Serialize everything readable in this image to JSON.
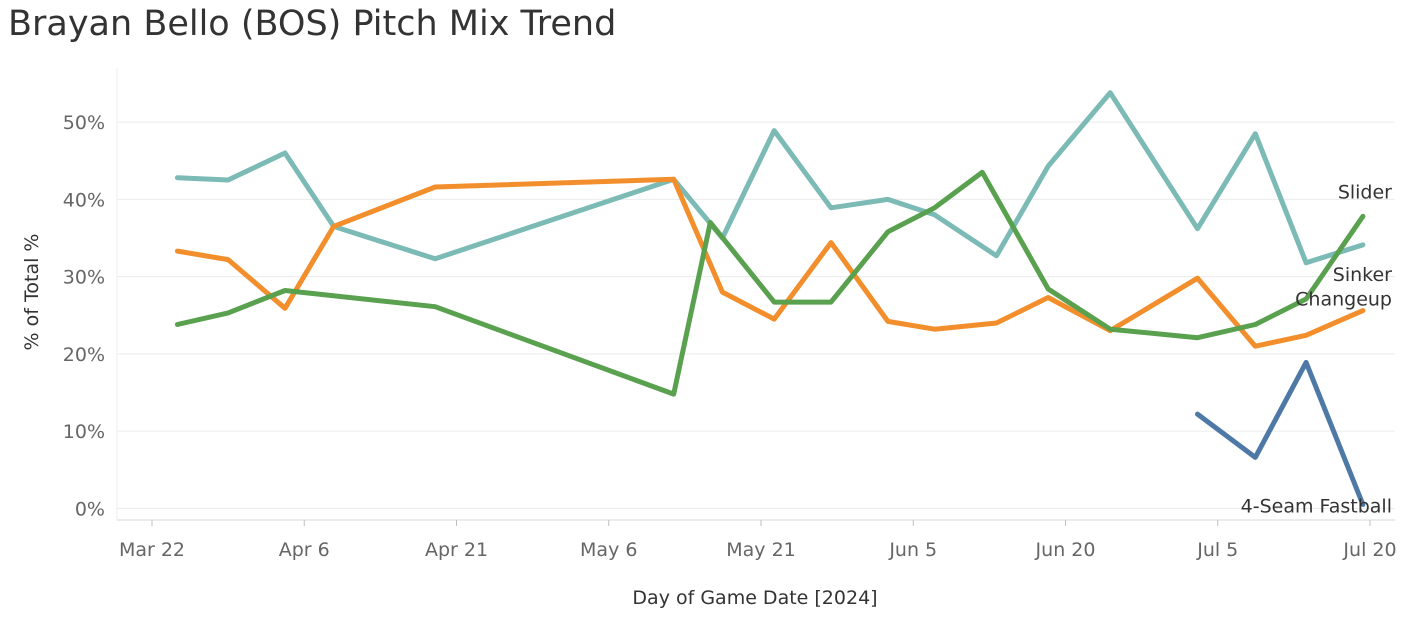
{
  "chart_data": {
    "type": "line",
    "title": "Brayan Bello (BOS) Pitch Mix Trend",
    "xlabel": "Day of Game Date [2024]",
    "ylabel": "% of Total %",
    "ylim": [
      -1.5,
      57
    ],
    "grid": true,
    "x_tick_labels": [
      "Mar 22",
      "Apr 6",
      "Apr 21",
      "May 6",
      "May 21",
      "Jun 5",
      "Jun 20",
      "Jul 5",
      "Jul 20"
    ],
    "x_tick_days": [
      0,
      15,
      30,
      45,
      60,
      75,
      90,
      105,
      120
    ],
    "y_ticks": [
      0,
      10,
      20,
      30,
      40,
      50
    ],
    "y_tick_labels": [
      "0%",
      "10%",
      "20%",
      "30%",
      "40%",
      "50%"
    ],
    "series": [
      {
        "name": "Sinker",
        "color": "#7bbab5",
        "points": [
          {
            "day": 2.5,
            "value": 42.8
          },
          {
            "day": 7.5,
            "value": 42.5
          },
          {
            "day": 13.1,
            "value": 46.0
          },
          {
            "day": 17.9,
            "value": 36.5
          },
          {
            "day": 27.9,
            "value": 32.3
          },
          {
            "day": 51.4,
            "value": 42.6
          },
          {
            "day": 56.2,
            "value": 35.0
          },
          {
            "day": 61.3,
            "value": 48.9
          },
          {
            "day": 66.9,
            "value": 38.9
          },
          {
            "day": 72.5,
            "value": 40.0
          },
          {
            "day": 77.1,
            "value": 38.0
          },
          {
            "day": 83.2,
            "value": 32.7
          },
          {
            "day": 88.3,
            "value": 44.3
          },
          {
            "day": 94.4,
            "value": 53.8
          },
          {
            "day": 103.0,
            "value": 36.2
          },
          {
            "day": 108.7,
            "value": 48.5
          },
          {
            "day": 113.7,
            "value": 31.8
          },
          {
            "day": 119.3,
            "value": 34.1
          }
        ]
      },
      {
        "name": "Changeup",
        "color": "#f28e2b",
        "points": [
          {
            "day": 2.5,
            "value": 33.3
          },
          {
            "day": 7.5,
            "value": 32.2
          },
          {
            "day": 13.1,
            "value": 25.9
          },
          {
            "day": 17.9,
            "value": 36.5
          },
          {
            "day": 27.9,
            "value": 41.6
          },
          {
            "day": 51.4,
            "value": 42.6
          },
          {
            "day": 56.2,
            "value": 28.0
          },
          {
            "day": 61.3,
            "value": 24.5
          },
          {
            "day": 66.9,
            "value": 34.4
          },
          {
            "day": 72.5,
            "value": 24.2
          },
          {
            "day": 77.1,
            "value": 23.2
          },
          {
            "day": 83.2,
            "value": 24.0
          },
          {
            "day": 88.3,
            "value": 27.3
          },
          {
            "day": 94.4,
            "value": 23.0
          },
          {
            "day": 103.0,
            "value": 29.8
          },
          {
            "day": 108.7,
            "value": 21.0
          },
          {
            "day": 113.7,
            "value": 22.4
          },
          {
            "day": 119.3,
            "value": 25.6
          }
        ]
      },
      {
        "name": "Slider",
        "color": "#59a14f",
        "points": [
          {
            "day": 2.5,
            "value": 23.8
          },
          {
            "day": 7.5,
            "value": 25.3
          },
          {
            "day": 13.1,
            "value": 28.2
          },
          {
            "day": 27.9,
            "value": 26.1
          },
          {
            "day": 51.4,
            "value": 14.8
          },
          {
            "day": 55.0,
            "value": 37.0
          },
          {
            "day": 61.3,
            "value": 26.7
          },
          {
            "day": 66.9,
            "value": 26.7
          },
          {
            "day": 72.5,
            "value": 35.8
          },
          {
            "day": 77.1,
            "value": 38.9
          },
          {
            "day": 81.8,
            "value": 43.5
          },
          {
            "day": 88.3,
            "value": 28.4
          },
          {
            "day": 94.4,
            "value": 23.2
          },
          {
            "day": 103.0,
            "value": 22.1
          },
          {
            "day": 108.7,
            "value": 23.8
          },
          {
            "day": 113.7,
            "value": 27.1
          },
          {
            "day": 119.3,
            "value": 37.8
          }
        ]
      },
      {
        "name": "4-Seam Fastball",
        "color": "#4e79a7",
        "points": [
          {
            "day": 103.0,
            "value": 12.2
          },
          {
            "day": 108.7,
            "value": 6.6
          },
          {
            "day": 113.7,
            "value": 18.9
          },
          {
            "day": 119.3,
            "value": 0.5
          }
        ]
      }
    ],
    "series_label_order": [
      "Slider",
      "Sinker",
      "Changeup",
      "4-Seam Fastball"
    ]
  }
}
